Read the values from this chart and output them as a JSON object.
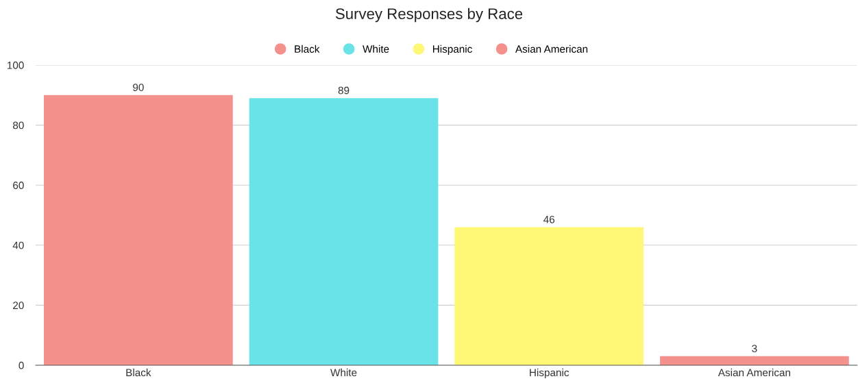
{
  "chart_data": {
    "type": "bar",
    "title": "Survey Responses by Race",
    "categories": [
      "Black",
      "White",
      "Hispanic",
      "Asian American"
    ],
    "stacked": true,
    "series": [
      {
        "name": "Black",
        "color": "#f4918d",
        "values": [
          90,
          null,
          null,
          null
        ]
      },
      {
        "name": "White",
        "color": "#6ae3e8",
        "values": [
          null,
          89,
          null,
          null
        ]
      },
      {
        "name": "Hispanic",
        "color": "#fef876",
        "values": [
          null,
          null,
          46,
          null
        ]
      },
      {
        "name": "Asian American",
        "color": "#f4918d",
        "values": [
          null,
          null,
          null,
          3
        ]
      }
    ],
    "ylim": [
      0,
      100
    ],
    "yticks": [
      0,
      20,
      40,
      60,
      80,
      100
    ],
    "grid": "y",
    "legend": "top",
    "data_labels": true
  }
}
